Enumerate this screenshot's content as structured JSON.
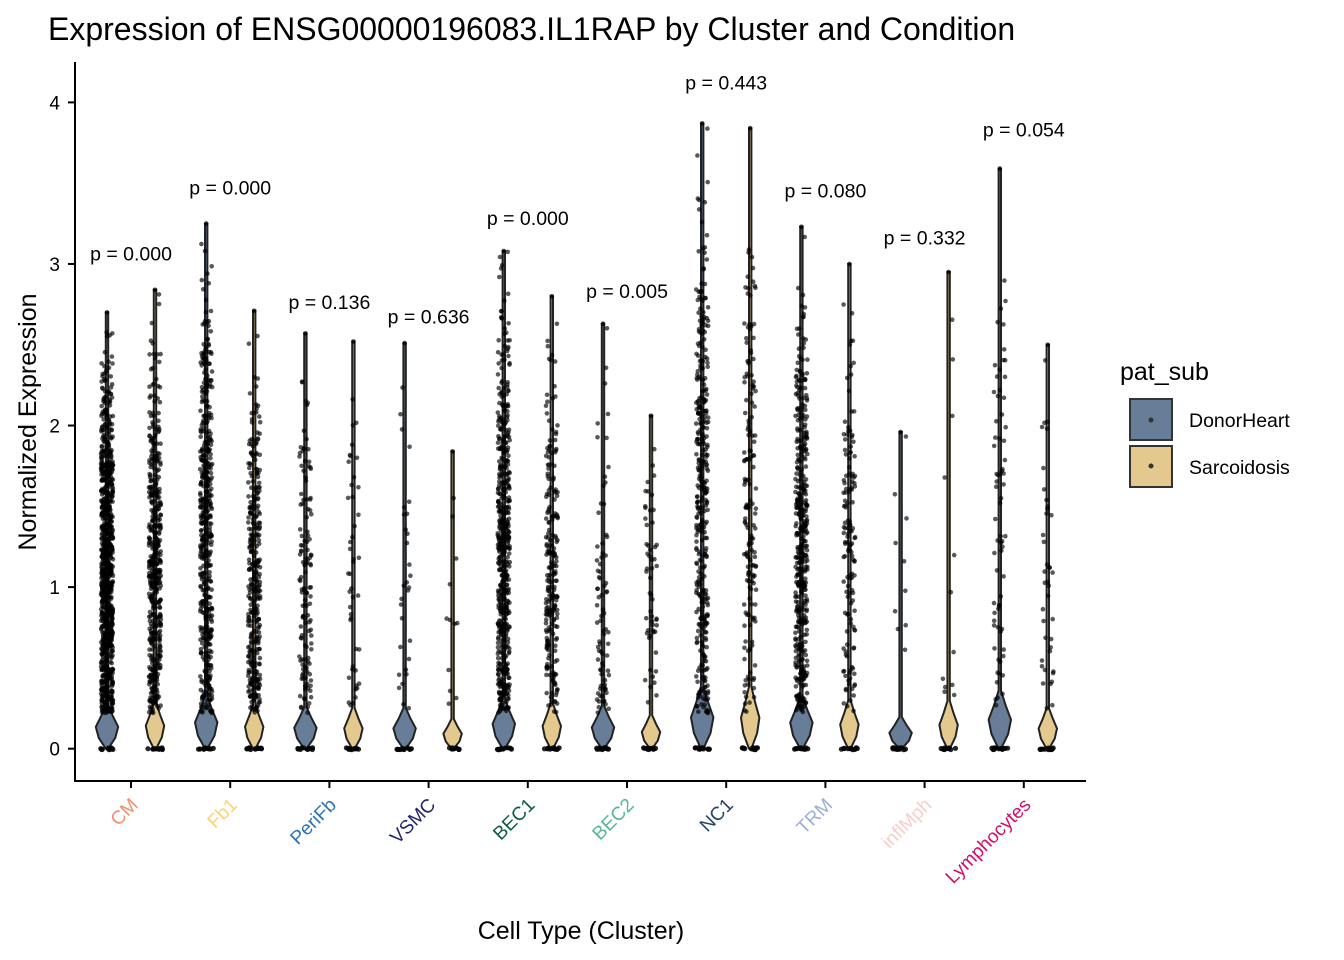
{
  "chart_data": {
    "type": "violin",
    "title": "Expression of ENSG00000196083.IL1RAP by Cluster and Condition",
    "xlabel": "Cell Type (Cluster)",
    "ylabel": "Normalized Expression",
    "ylim": [
      -0.2,
      4.25
    ],
    "yticks": [
      0,
      1,
      2,
      3,
      4
    ],
    "grid": false,
    "legend": {
      "title": "pat_sub",
      "placement": "right",
      "entries": [
        {
          "name": "DonorHeart",
          "color": "#687d97"
        },
        {
          "name": "Sarcoidosis",
          "color": "#e4c98f"
        }
      ]
    },
    "categories": [
      {
        "name": "CM",
        "color": "#f08f6e"
      },
      {
        "name": "Fb1",
        "color": "#fbd36e"
      },
      {
        "name": "PeriFb",
        "color": "#2b73b5"
      },
      {
        "name": "VSMC",
        "color": "#23236f"
      },
      {
        "name": "BEC1",
        "color": "#0e5b45"
      },
      {
        "name": "BEC2",
        "color": "#54b895"
      },
      {
        "name": "NC1",
        "color": "#2a4267"
      },
      {
        "name": "TRM",
        "color": "#9aafd6"
      },
      {
        "name": "inflMph",
        "color": "#f6cfcc"
      },
      {
        "name": "Lymphocytes",
        "color": "#cf0f6c"
      }
    ],
    "pvalues": [
      "p = 0.000",
      "p = 0.000",
      "p = 0.136",
      "p = 0.636",
      "p = 0.000",
      "p = 0.005",
      "p = 0.443",
      "p = 0.080",
      "p = 0.332",
      "p = 0.054"
    ],
    "pvalue_y": [
      3.02,
      3.43,
      2.72,
      2.63,
      3.24,
      2.79,
      4.08,
      3.41,
      3.12,
      3.79
    ],
    "series": [
      {
        "name": "DonorHeart",
        "max": [
          2.7,
          3.25,
          2.57,
          2.51,
          3.08,
          2.63,
          3.87,
          3.23,
          1.96,
          3.59
        ],
        "points": [
          950,
          500,
          130,
          30,
          560,
          80,
          380,
          430,
          10,
          70
        ]
      },
      {
        "name": "Sarcoidosis",
        "max": [
          2.84,
          2.71,
          2.52,
          1.84,
          2.8,
          2.06,
          3.84,
          3.0,
          2.95,
          2.5
        ],
        "points": [
          480,
          350,
          45,
          12,
          230,
          55,
          165,
          140,
          12,
          40
        ]
      }
    ]
  }
}
